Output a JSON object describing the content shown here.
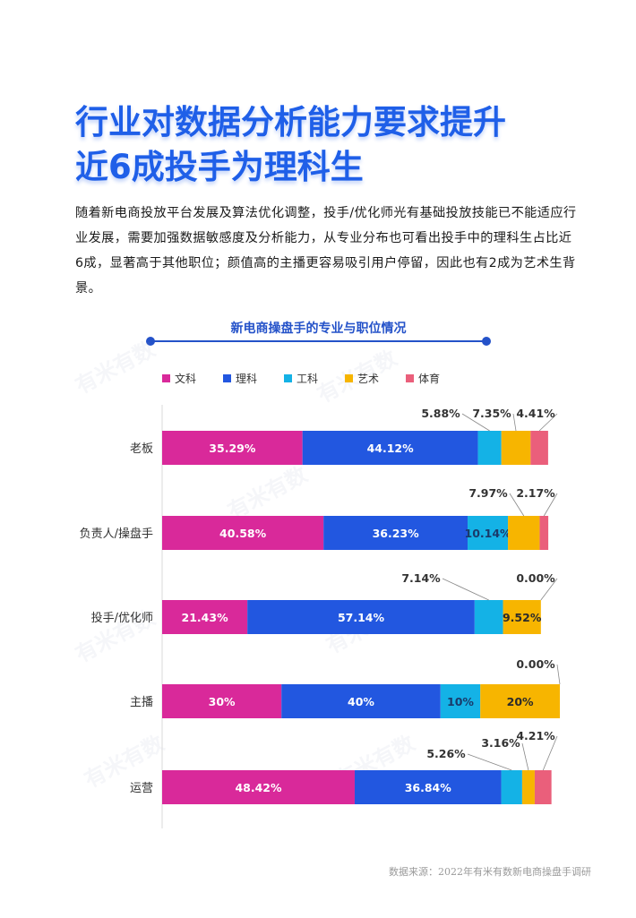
{
  "title": "行业对数据分析能力要求提升近6成投手为理科生",
  "title_line1": "行业对数据分析能力要求提升",
  "title_line2": "近6成投手为理科生",
  "intro": "随着新电商投放平台发展及算法优化调整，投手/优化师光有基础投放技能已不能适应行业发展，需要加强数据敏感度及分析能力，从专业分布也可看出投手中的理科生占比近6成，显著高于其他职位；颜值高的主播更容易吸引用户停留，因此也有2成为艺术生背景。",
  "source": "数据来源：2022年有米有数新电商操盘手调研",
  "watermark": "有米有数",
  "chart_data": {
    "type": "bar",
    "stacked": true,
    "orientation": "horizontal",
    "title": "新电商操盘手的专业与职位情况",
    "legend_position": "top",
    "categories": [
      "老板",
      "负责人/操盘手",
      "投手/优化师",
      "主播",
      "运营"
    ],
    "series": [
      {
        "name": "文科",
        "color": "#d9299a",
        "values": [
          35.29,
          40.58,
          21.43,
          30,
          48.42
        ],
        "labels": [
          "35.29%",
          "40.58%",
          "21.43%",
          "30%",
          "48.42%"
        ]
      },
      {
        "name": "理科",
        "color": "#2257e0",
        "values": [
          44.12,
          36.23,
          57.14,
          40,
          36.84
        ],
        "labels": [
          "44.12%",
          "36.23%",
          "57.14%",
          "40%",
          "36.84%"
        ]
      },
      {
        "name": "工科",
        "color": "#14b2e6",
        "values": [
          5.88,
          10.14,
          7.14,
          10,
          5.26
        ],
        "labels": [
          "5.88%",
          "10.14%",
          "7.14%",
          "10%",
          "5.26%"
        ]
      },
      {
        "name": "艺术",
        "color": "#f7b500",
        "values": [
          7.35,
          7.97,
          9.52,
          20,
          3.16
        ],
        "labels": [
          "7.35%",
          "7.97%",
          "9.52%",
          "20%",
          "3.16%"
        ]
      },
      {
        "name": "体育",
        "color": "#ea5f7b",
        "values": [
          4.41,
          2.17,
          0,
          0,
          4.21
        ],
        "labels": [
          "4.41%",
          "2.17%",
          "0.00%",
          "0.00%",
          "4.21%"
        ]
      }
    ]
  }
}
